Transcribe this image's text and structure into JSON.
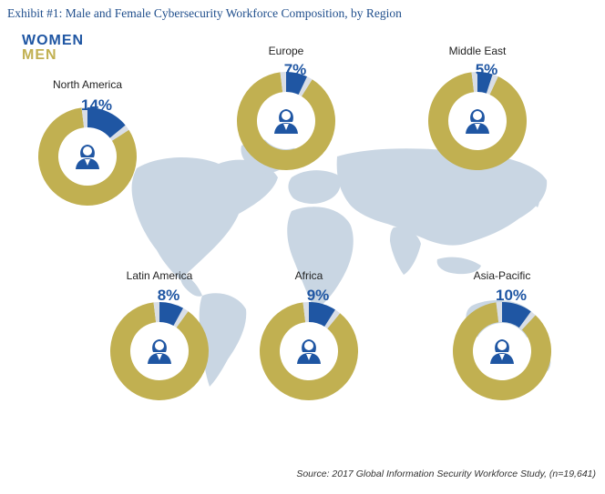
{
  "title": "Exhibit #1: Male and Female Cybersecurity Workforce Composition, by Region",
  "legend": {
    "women_label": "WOMEN",
    "men_label": "MEN"
  },
  "source": "Source: 2017 Global Information Security Workforce Study, (n=19,641)",
  "colors": {
    "women": "#1f56a3",
    "men": "#c1b051",
    "map": "#c9d6e3",
    "title": "#1f4e8c",
    "icon": "#1f56a3",
    "gap": "#d9dee6"
  },
  "icons": {
    "person": "female-worker-icon",
    "map": "world-map"
  },
  "chart_data": {
    "type": "pie",
    "variant": "donut",
    "series": [
      {
        "name": "WOMEN"
      },
      {
        "name": "MEN"
      }
    ],
    "regions": [
      {
        "name": "North America",
        "women_pct": 14,
        "label": "14%"
      },
      {
        "name": "Europe",
        "women_pct": 7,
        "label": "7%"
      },
      {
        "name": "Middle East",
        "women_pct": 5,
        "label": "5%"
      },
      {
        "name": "Latin America",
        "women_pct": 8,
        "label": "8%"
      },
      {
        "name": "Africa",
        "women_pct": 9,
        "label": "9%"
      },
      {
        "name": "Asia-Pacific",
        "women_pct": 10,
        "label": "10%"
      }
    ]
  }
}
